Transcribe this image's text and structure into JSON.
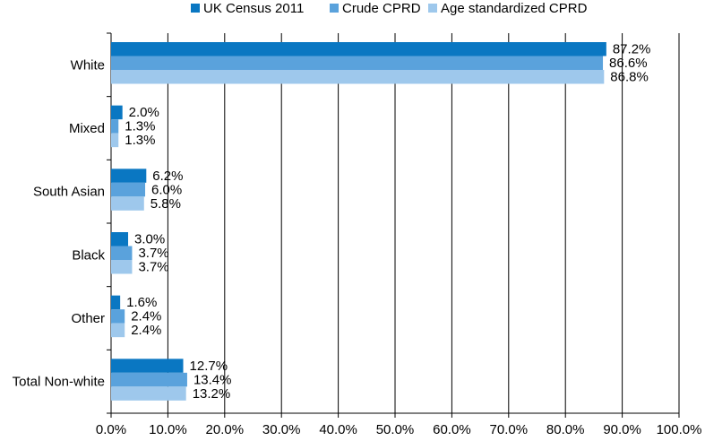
{
  "chart_data": {
    "type": "bar",
    "orientation": "horizontal",
    "categories": [
      "White",
      "Mixed",
      "South Asian",
      "Black",
      "Other",
      "Total Non-white"
    ],
    "series": [
      {
        "name": "UK Census 2011",
        "color": "#0a77c2",
        "values": [
          87.2,
          2.0,
          6.2,
          3.0,
          1.6,
          12.7
        ]
      },
      {
        "name": "Crude CPRD",
        "color": "#5aa2dc",
        "values": [
          86.6,
          1.3,
          6.0,
          3.7,
          2.4,
          13.4
        ]
      },
      {
        "name": "Age standardized CPRD",
        "color": "#9ec8ec",
        "values": [
          86.8,
          1.3,
          5.8,
          3.7,
          2.4,
          13.2
        ]
      }
    ],
    "value_labels": [
      [
        "87.2%",
        "86.6%",
        "86.8%"
      ],
      [
        "2.0%",
        "1.3%",
        "1.3%"
      ],
      [
        "6.2%",
        "6.0%",
        "5.8%"
      ],
      [
        "3.0%",
        "3.7%",
        "3.7%"
      ],
      [
        "1.6%",
        "2.4%",
        "2.4%"
      ],
      [
        "12.7%",
        "13.4%",
        "13.2%"
      ]
    ],
    "xticks": [
      "0.0%",
      "10.0%",
      "20.0%",
      "30.0%",
      "40.0%",
      "50.0%",
      "60.0%",
      "70.0%",
      "80.0%",
      "90.0%",
      "100.0%"
    ],
    "xlim": [
      0,
      100
    ],
    "grid": "vertical",
    "legend_position": "top"
  }
}
